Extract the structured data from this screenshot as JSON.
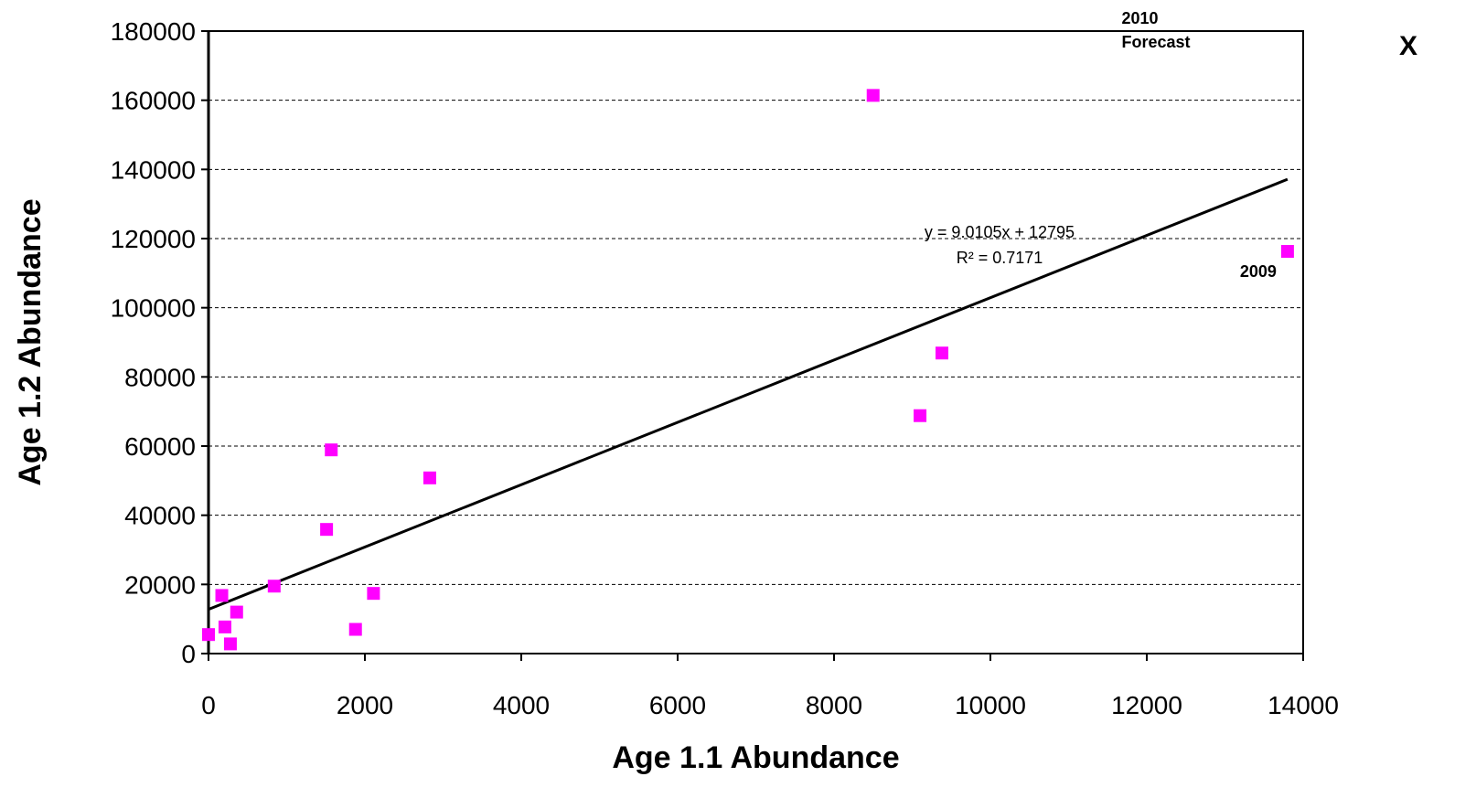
{
  "chart_data": {
    "type": "scatter",
    "xlabel": "Age 1.1 Abundance",
    "ylabel": "Age 1.2 Abundance",
    "xlim": [
      0,
      14000
    ],
    "ylim": [
      0,
      180000
    ],
    "xticks": [
      0,
      2000,
      4000,
      6000,
      8000,
      10000,
      12000,
      14000
    ],
    "yticks": [
      0,
      20000,
      40000,
      60000,
      80000,
      100000,
      120000,
      140000,
      160000,
      180000
    ],
    "grid": "horizontal dashed",
    "marker_color": "#ff00ff",
    "points": [
      {
        "x": 0,
        "y": 5500
      },
      {
        "x": 170,
        "y": 16800
      },
      {
        "x": 210,
        "y": 7700
      },
      {
        "x": 280,
        "y": 2800
      },
      {
        "x": 360,
        "y": 12000
      },
      {
        "x": 840,
        "y": 19500
      },
      {
        "x": 1510,
        "y": 35900
      },
      {
        "x": 1570,
        "y": 58900
      },
      {
        "x": 1880,
        "y": 7000
      },
      {
        "x": 2110,
        "y": 17400
      },
      {
        "x": 2830,
        "y": 50800
      },
      {
        "x": 8500,
        "y": 161400
      },
      {
        "x": 9100,
        "y": 68800
      },
      {
        "x": 9380,
        "y": 86900
      },
      {
        "x": 13800,
        "y": 116300
      }
    ],
    "trendline": {
      "equation": "y = 9.0105x  + 12795",
      "r2": "R² = 0.7171",
      "slope": 9.0105,
      "intercept": 12795,
      "x_range": [
        0,
        13800
      ]
    },
    "annotations": {
      "point_2009": {
        "text": "2009",
        "x": 13800,
        "y": 116300
      },
      "forecast_line1": "2010",
      "forecast_line2": "Forecast",
      "forecast_marker": "X",
      "forecast_x": 13550
    }
  }
}
